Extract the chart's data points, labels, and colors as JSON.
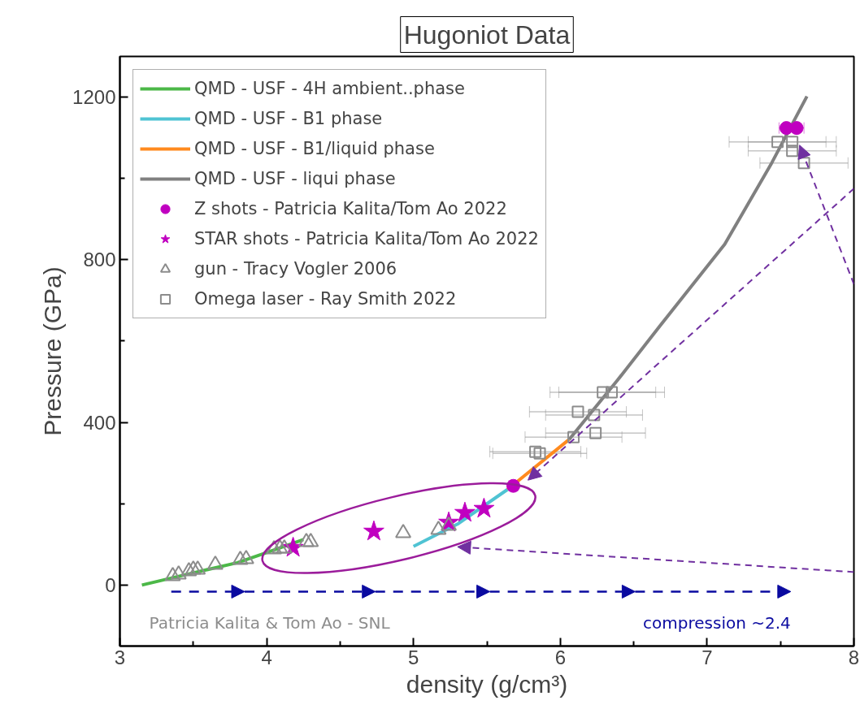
{
  "chart_data": {
    "type": "scatter",
    "title": "Hugoniot Data",
    "xlabel": "density (g/cm³)",
    "ylabel": "Pressure (GPa)",
    "xlim": [
      3,
      8
    ],
    "ylim": [
      -150,
      1300
    ],
    "xticks": [
      3,
      4,
      5,
      6,
      7,
      8
    ],
    "yticks": [
      0,
      400,
      800,
      1200
    ],
    "grid": false,
    "legend": "top left",
    "series": [
      {
        "name": "QMD - USF - 4H ambient..phase",
        "type": "line",
        "color": "#4cb848",
        "x": [
          3.15,
          3.5,
          3.8,
          4.0,
          4.25
        ],
        "values": [
          0,
          30,
          55,
          80,
          112
        ]
      },
      {
        "name": "QMD - USF - B1 phase",
        "type": "line",
        "color": "#4fc3d3",
        "x": [
          5.0,
          5.3,
          5.64
        ],
        "values": [
          95,
          150,
          235
        ]
      },
      {
        "name": "QMD - USF - B1/liquid phase",
        "type": "line",
        "color": "#ff8a1e",
        "x": [
          5.64,
          6.06
        ],
        "values": [
          235,
          358
        ]
      },
      {
        "name": "QMD - USF - liqui phase",
        "type": "line",
        "color": "#808080",
        "x": [
          6.06,
          6.39,
          6.68,
          7.12,
          7.44,
          7.68
        ],
        "values": [
          358,
          504,
          638,
          838,
          1038,
          1202
        ]
      },
      {
        "name": "Z shots - Patricia Kalita/Tom Ao 2022",
        "type": "scatter",
        "color": "#c000c0",
        "marker": "circle",
        "x": [
          5.68,
          7.54,
          7.61
        ],
        "values": [
          244,
          1124,
          1124
        ],
        "xerrors": [
          0.03,
          0.05,
          0.05
        ]
      },
      {
        "name": "STAR shots - Patricia Kalita/Tom Ao 2022",
        "type": "scatter",
        "color": "#c000c0",
        "marker": "star",
        "x": [
          4.18,
          4.73,
          5.24,
          5.35,
          5.48
        ],
        "values": [
          92,
          132,
          154,
          178,
          188
        ]
      },
      {
        "name": "gun - Tracy Vogler 2006",
        "type": "scatter",
        "color": "#8c8c8c",
        "marker": "triangle",
        "x": [
          3.36,
          3.4,
          3.47,
          3.5,
          3.53,
          3.65,
          3.82,
          3.86,
          4.05,
          4.09,
          4.12,
          4.27,
          4.3,
          4.93,
          5.17,
          5.24
        ],
        "values": [
          22,
          26,
          34,
          38,
          38,
          50,
          62,
          64,
          88,
          90,
          90,
          106,
          106,
          128,
          136,
          146
        ]
      },
      {
        "name": "Omega laser - Ray Smith 2022",
        "type": "scatter",
        "color": "#8c8c8c",
        "marker": "square",
        "x": [
          6.29,
          6.35,
          6.12,
          6.23,
          6.09,
          6.24,
          5.83,
          5.86,
          7.48,
          7.58,
          7.58,
          7.66
        ],
        "values": [
          474,
          474,
          426,
          418,
          364,
          374,
          328,
          324,
          1090,
          1090,
          1068,
          1038
        ],
        "xerrors": [
          0.36,
          0.36,
          0.33,
          0.33,
          0.33,
          0.34,
          0.31,
          0.32,
          0.33,
          0.3,
          0.3,
          0.3
        ]
      }
    ],
    "annotations": [
      "Patricia Kalita & Tom Ao - SNL",
      "compression ~2.4"
    ]
  }
}
